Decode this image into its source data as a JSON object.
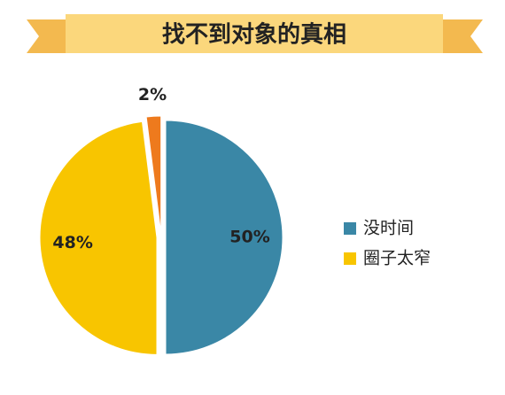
{
  "chart_data": {
    "type": "pie",
    "title": "找不到对象的真相",
    "categories": [
      "没时间",
      "圈子太窄",
      null
    ],
    "values": [
      50,
      48,
      2
    ],
    "value_labels": [
      "50%",
      "48%",
      "2%"
    ],
    "colors": [
      "#3a87a6",
      "#f8c500",
      "#ee7a1d"
    ]
  }
}
